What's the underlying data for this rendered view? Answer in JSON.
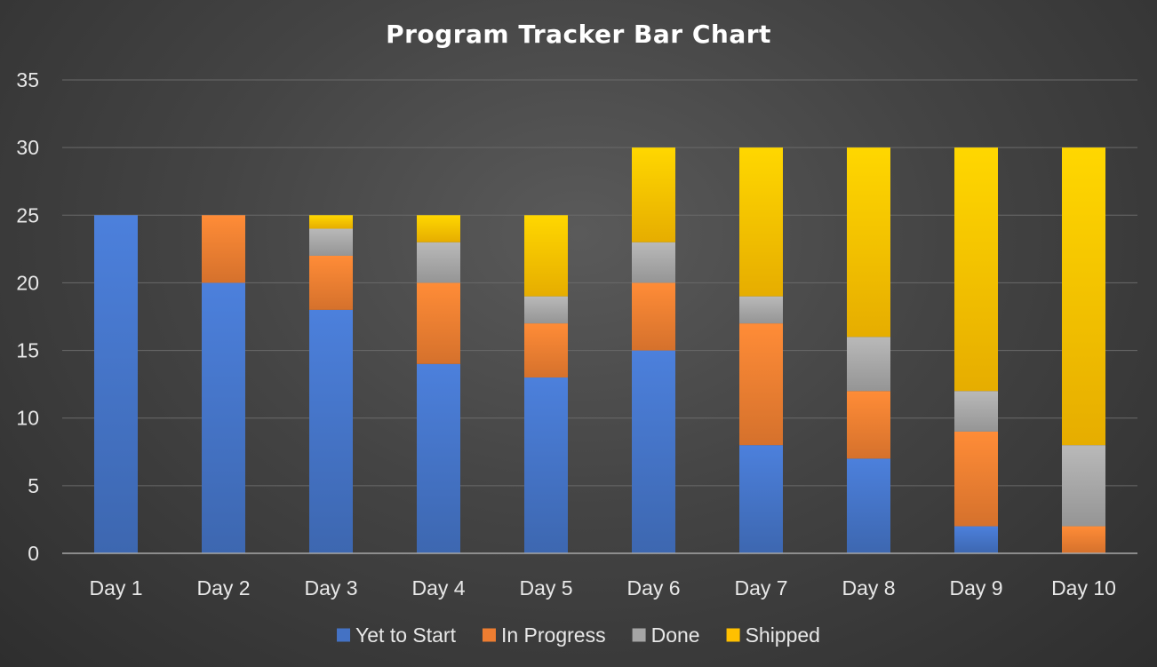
{
  "chart_data": {
    "type": "bar",
    "stacked": true,
    "title": "Program Tracker Bar Chart",
    "xlabel": "",
    "ylabel": "",
    "ylim": [
      0,
      35
    ],
    "yticks": [
      0,
      5,
      10,
      15,
      20,
      25,
      30,
      35
    ],
    "grid": true,
    "legend_position": "bottom",
    "categories": [
      "Day 1",
      "Day 2",
      "Day 3",
      "Day 4",
      "Day 5",
      "Day 6",
      "Day 7",
      "Day 8",
      "Day 9",
      "Day 10"
    ],
    "series": [
      {
        "name": "Yet to Start",
        "color": "#4472C4",
        "values": [
          25,
          20,
          18,
          14,
          13,
          15,
          8,
          7,
          2,
          0
        ]
      },
      {
        "name": "In Progress",
        "color": "#ED7D31",
        "values": [
          0,
          5,
          4,
          6,
          4,
          5,
          9,
          5,
          7,
          2
        ]
      },
      {
        "name": "Done",
        "color": "#A5A5A5",
        "values": [
          0,
          0,
          2,
          3,
          2,
          3,
          2,
          4,
          3,
          6
        ]
      },
      {
        "name": "Shipped",
        "color": "#FFC000",
        "values": [
          0,
          0,
          1,
          2,
          6,
          7,
          11,
          14,
          18,
          22
        ]
      }
    ]
  }
}
